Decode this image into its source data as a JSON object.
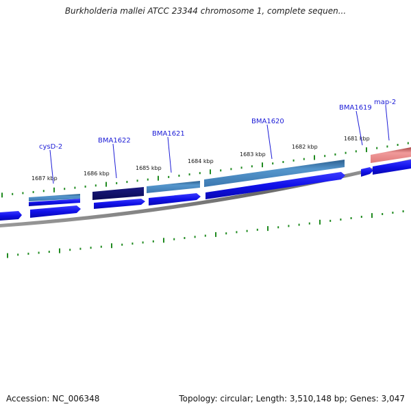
{
  "header": {
    "title": "Burkholderia mallei ATCC 23344 chromosome 1, complete sequen..."
  },
  "footer": {
    "accession": "Accession: NC_006348",
    "summary": "Topology: circular; Length: 3,510,148 bp; Genes: 3,047"
  },
  "scale_labels": [
    "1687 kbp",
    "1686 kbp",
    "1685 kbp",
    "1684 kbp",
    "1683 kbp",
    "1682 kbp",
    "1681 kbp"
  ],
  "gene_labels": [
    "cysD-2",
    "BMA1622",
    "BMA1621",
    "BMA1620",
    "BMA1619",
    "map-2"
  ],
  "colors": {
    "backbone": "#7a7a7a",
    "cds_arrow": "#1212e6",
    "tick": "#1f8a1f",
    "label": "#1a1ad6",
    "cog_light": "#4a86c0",
    "cog_dark": "#101070",
    "cog_red": "#e88a8a"
  }
}
